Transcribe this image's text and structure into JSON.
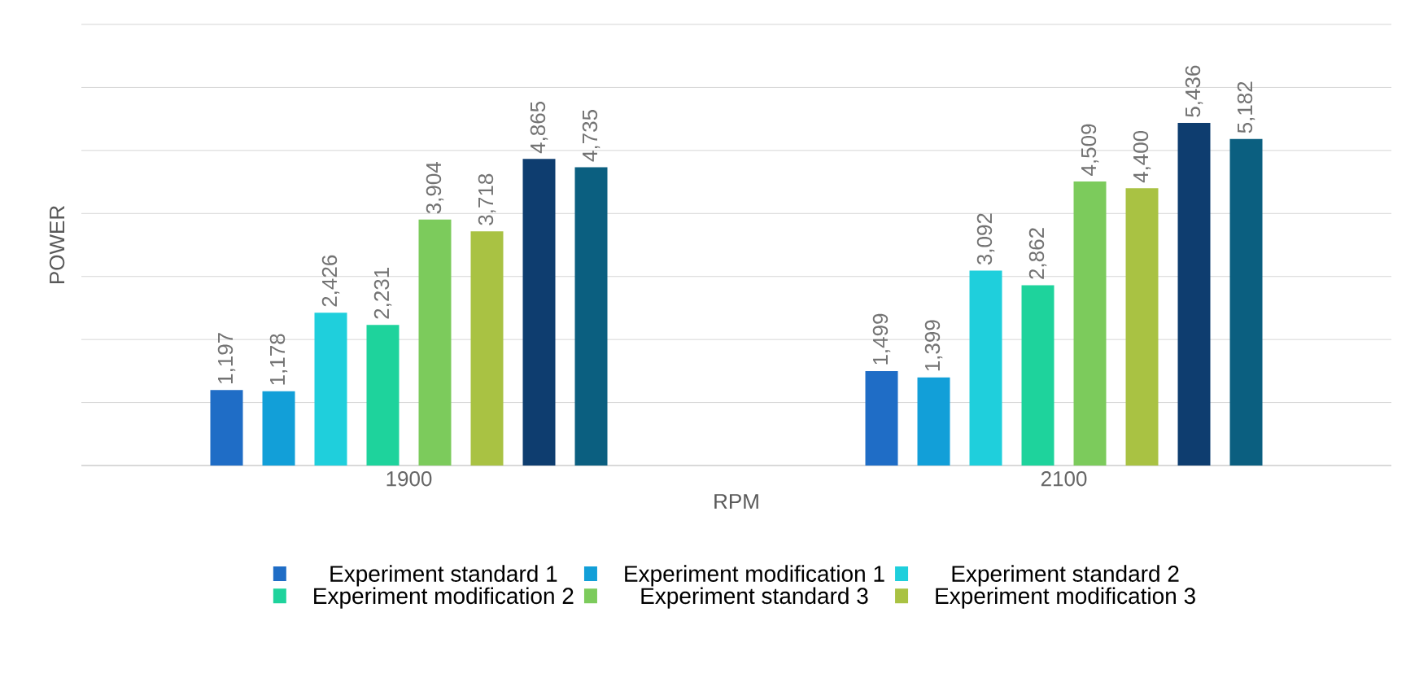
{
  "chart_data": {
    "type": "bar",
    "xlabel": "RPM",
    "ylabel": "POWER",
    "categories": [
      "1900",
      "2100"
    ],
    "ylim": [
      0,
      7000
    ],
    "yticks": [
      {
        "value": 0,
        "label": null
      },
      {
        "value": 1000,
        "label": null
      },
      {
        "value": 2000,
        "label": null
      },
      {
        "value": 3000,
        "label": null
      },
      {
        "value": 4000,
        "label": null
      },
      {
        "value": 5000,
        "label": null
      },
      {
        "value": 6000,
        "label": null
      },
      {
        "value": 7000,
        "label": null
      }
    ],
    "tick_labels": "x",
    "grid": "y",
    "legend": "bottom",
    "series": [
      {
        "name": "Experiment standard 1",
        "color": "#1f6dc6",
        "values": [
          1197,
          1499
        ],
        "value_labels": [
          "1,197",
          "1,499"
        ]
      },
      {
        "name": "Experiment modification 1",
        "color": "#129fd8",
        "values": [
          1178,
          1399
        ],
        "value_labels": [
          "1,178",
          "1,399"
        ]
      },
      {
        "name": "Experiment standard 2",
        "color": "#1fcfdc",
        "values": [
          2426,
          3092
        ],
        "value_labels": [
          "2,426",
          "3,092"
        ]
      },
      {
        "name": "Experiment modification 2",
        "color": "#1ed39c",
        "values": [
          2231,
          2862
        ],
        "value_labels": [
          "2,231",
          "2,862"
        ]
      },
      {
        "name": "Experiment standard 3",
        "color": "#7ccb5c",
        "values": [
          3904,
          4509
        ],
        "value_labels": [
          "3,904",
          "4,509"
        ]
      },
      {
        "name": "Experiment modification 3",
        "color": "#a9c243",
        "values": [
          3718,
          4400
        ],
        "value_labels": [
          "3,718",
          "4,400"
        ]
      },
      {
        "color": "#0e3d6f",
        "values": [
          4865,
          5436
        ],
        "value_labels": [
          "4,865",
          "5,436"
        ]
      },
      {
        "color": "#0b5f80",
        "values": [
          4735,
          5182
        ],
        "value_labels": [
          "4,735",
          "5,182"
        ]
      }
    ]
  }
}
